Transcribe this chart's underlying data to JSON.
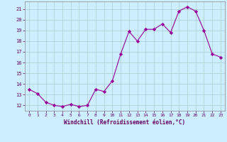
{
  "x": [
    0,
    1,
    2,
    3,
    4,
    5,
    6,
    7,
    8,
    9,
    10,
    11,
    12,
    13,
    14,
    15,
    16,
    17,
    18,
    19,
    20,
    21,
    22,
    23
  ],
  "y": [
    13.5,
    13.1,
    12.3,
    12.0,
    11.9,
    12.1,
    11.9,
    12.0,
    13.5,
    13.3,
    14.3,
    16.8,
    18.9,
    18.0,
    19.1,
    19.1,
    19.6,
    18.8,
    20.8,
    21.2,
    20.8,
    19.0,
    16.8,
    16.5
  ],
  "line_color": "#990099",
  "marker": "D",
  "marker_size": 2.2,
  "bg_color": "#cceeff",
  "grid_color": "#aacccc",
  "xlabel": "Windchill (Refroidissement éolien,°C)",
  "xlabel_color": "#660066",
  "tick_color": "#660066",
  "ylim": [
    11.5,
    21.7
  ],
  "xlim": [
    -0.5,
    23.5
  ],
  "yticks": [
    12,
    13,
    14,
    15,
    16,
    17,
    18,
    19,
    20,
    21
  ],
  "xticks": [
    0,
    1,
    2,
    3,
    4,
    5,
    6,
    7,
    8,
    9,
    10,
    11,
    12,
    13,
    14,
    15,
    16,
    17,
    18,
    19,
    20,
    21,
    22,
    23
  ],
  "xtick_labels": [
    "0",
    "1",
    "2",
    "3",
    "4",
    "5",
    "6",
    "7",
    "8",
    "9",
    "10",
    "11",
    "12",
    "13",
    "14",
    "15",
    "16",
    "17",
    "18",
    "19",
    "20",
    "21",
    "22",
    "23"
  ]
}
